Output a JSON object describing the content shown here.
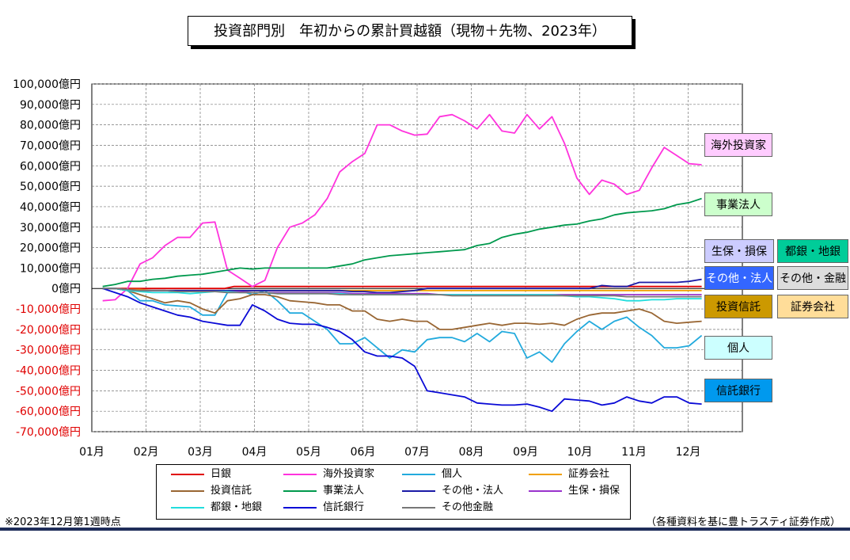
{
  "title": "投資部門別　年初からの累計買越額（現物＋先物、2023年）",
  "footer_note": "※2023年12月第1週時点",
  "source_note": "（各種資料を基に豊トラスティ証券作成）",
  "chart_data": {
    "type": "line",
    "title": "投資部門別　年初からの累計買越額（現物＋先物、2023年）",
    "xlabel": "",
    "ylabel": "",
    "ylim": [
      -70000,
      100000
    ],
    "y_ticks": [
      "100,000億円",
      "90,000億円",
      "80,000億円",
      "70,000億円",
      "60,000億円",
      "50,000億円",
      "40,000億円",
      "30,000億円",
      "20,000億円",
      "10,000億円",
      "0億円",
      "-10,000億円",
      "-20,000億円",
      "-30,000億円",
      "-40,000億円",
      "-50,000億円",
      "-60,000億円",
      "-70,000億円"
    ],
    "y_tick_values": [
      100000,
      90000,
      80000,
      70000,
      60000,
      50000,
      40000,
      30000,
      20000,
      10000,
      0,
      -10000,
      -20000,
      -30000,
      -40000,
      -50000,
      -60000,
      -70000
    ],
    "x_ticks": [
      "01月",
      "02月",
      "03月",
      "04月",
      "05月",
      "06月",
      "07月",
      "08月",
      "09月",
      "10月",
      "11月",
      "12月"
    ],
    "grid": true,
    "legend_position": "bottom",
    "series": [
      {
        "name": "日銀",
        "color": "#e00000",
        "values": [
          0,
          0,
          0,
          0,
          0,
          0,
          0,
          0,
          0,
          0,
          0,
          0,
          0,
          0,
          1000,
          1000,
          1000,
          1000,
          1000,
          1000,
          1000,
          1000,
          1000,
          1000,
          1000,
          1000,
          1000,
          1000,
          1000,
          1000,
          1000,
          1000,
          1000,
          1000,
          1000,
          1000,
          1000,
          1000,
          1000,
          1000,
          1000,
          1000,
          1000,
          1000,
          1000,
          1000,
          1000,
          1000,
          1000,
          1000,
          1000,
          1000,
          1000,
          1000,
          1000,
          1000,
          1000,
          1000,
          1000,
          1000,
          1000,
          1000,
          1000,
          1000,
          1000
        ]
      },
      {
        "name": "海外投資家",
        "color": "#ff33dd",
        "values": [
          -6000,
          -5500,
          0,
          12000,
          15000,
          21000,
          25000,
          25000,
          32000,
          32500,
          9000,
          5000,
          1000,
          4000,
          20000,
          30000,
          32000,
          36000,
          44000,
          57000,
          62000,
          66000,
          80000,
          80000,
          77000,
          75000,
          75500,
          84000,
          85000,
          82000,
          78000,
          85000,
          77000,
          76000,
          85000,
          78000,
          84000,
          71000,
          54000,
          46000,
          53000,
          51000,
          46000,
          48000,
          59000,
          69000,
          65000,
          61000,
          60500
        ]
      },
      {
        "name": "個人",
        "color": "#22aadd",
        "values": [
          0,
          0,
          -1000,
          -6000,
          -6000,
          -8000,
          -8500,
          -9000,
          -13000,
          -13000,
          -2000,
          -1000,
          -3000,
          -1000,
          -6000,
          -12000,
          -12000,
          -16000,
          -20000,
          -27000,
          -27000,
          -24000,
          -29000,
          -34000,
          -30000,
          -31000,
          -25000,
          -24000,
          -24000,
          -26000,
          -22000,
          -26000,
          -21000,
          -22000,
          -34000,
          -31000,
          -36000,
          -27000,
          -21000,
          -16000,
          -20000,
          -16000,
          -14000,
          -19000,
          -23000,
          -29000,
          -29000,
          -28000,
          -23000
        ]
      },
      {
        "name": "証券会社",
        "color": "#f0a000",
        "values": [
          0,
          0,
          -500,
          -500,
          -1000,
          -1000,
          -1000,
          -1000,
          -1000,
          -1000,
          -1000,
          -1000,
          -1000,
          -1000,
          -1000,
          -1000,
          -1000,
          -1000,
          -1000,
          -1000,
          -1000,
          -1000,
          -1000,
          -1000,
          -1000,
          -1000,
          -1000,
          -1000,
          -1000,
          -1000,
          -1000,
          -1000,
          -1000,
          -1000,
          -1000,
          -1000,
          -1000,
          -1000,
          -1000,
          -1000,
          -1000,
          -1000,
          -1000,
          -1000,
          -1000,
          -1000,
          -1000,
          -1000,
          -1000
        ]
      },
      {
        "name": "投資信託",
        "color": "#996633",
        "values": [
          0,
          0,
          -1000,
          -3000,
          -5000,
          -7000,
          -6000,
          -7000,
          -10000,
          -12000,
          -6000,
          -5000,
          -3000,
          -3000,
          -4000,
          -6000,
          -6500,
          -7000,
          -8000,
          -8000,
          -11000,
          -11000,
          -15000,
          -16000,
          -15000,
          -16000,
          -16000,
          -20000,
          -20000,
          -19000,
          -18000,
          -17000,
          -18000,
          -17000,
          -17000,
          -17500,
          -17000,
          -18000,
          -15000,
          -13000,
          -12000,
          -12000,
          -11000,
          -10000,
          -12000,
          -16000,
          -17000,
          -16500,
          -16000
        ]
      },
      {
        "name": "事業法人",
        "color": "#00994d",
        "values": [
          1000,
          2000,
          3500,
          3500,
          4500,
          5000,
          6000,
          6500,
          7000,
          8000,
          9000,
          10000,
          9500,
          10000,
          10000,
          10000,
          10000,
          10000,
          10000,
          11000,
          12000,
          14000,
          15000,
          16000,
          16500,
          17000,
          17500,
          18000,
          18500,
          19000,
          21000,
          22000,
          25000,
          26500,
          27500,
          29000,
          30000,
          31000,
          31500,
          33000,
          34000,
          36000,
          37000,
          37500,
          38000,
          39000,
          41000,
          42000,
          44000
        ]
      },
      {
        "name": "その他・法人",
        "color": "#1a1aa6",
        "values": [
          0,
          0,
          -1000,
          -1000,
          -1000,
          -1000,
          -1000,
          -1000,
          -1000,
          -1000,
          -1000,
          -1000,
          -1000,
          -1000,
          -1000,
          -1000,
          -1000,
          -1000,
          -1000,
          -1000,
          -1500,
          -1500,
          -2000,
          -2000,
          -1500,
          -1000,
          0,
          0,
          0,
          0,
          0,
          0,
          0,
          0,
          0,
          0,
          0,
          0,
          0,
          0,
          1500,
          1000,
          1000,
          3000,
          3000,
          3000,
          3000,
          3500,
          4500
        ]
      },
      {
        "name": "生保・損保",
        "color": "#9933cc",
        "values": [
          0,
          0,
          -500,
          -1000,
          -1000,
          -1000,
          -1500,
          -1500,
          -1500,
          -1500,
          -1500,
          -1500,
          -2000,
          -2000,
          -2000,
          -2000,
          -2000,
          -2000,
          -2000,
          -2000,
          -2500,
          -2500,
          -2500,
          -2500,
          -2500,
          -2500,
          -2500,
          -3000,
          -3000,
          -3000,
          -3000,
          -3000,
          -3000,
          -3000,
          -3000,
          -3000,
          -3000,
          -3000,
          -3000,
          -3000,
          -3000,
          -3000,
          -3000,
          -3000,
          -3000,
          -3000,
          -3000,
          -3000,
          -3000
        ]
      },
      {
        "name": "都銀・地銀",
        "color": "#22dddd",
        "values": [
          0,
          0,
          -1000,
          -1500,
          -2000,
          -2000,
          -2000,
          -2500,
          -2000,
          -1500,
          -1500,
          -2000,
          -2000,
          -2000,
          -2500,
          -2500,
          -2500,
          -2500,
          -2500,
          -2500,
          -3000,
          -3000,
          -3000,
          -3000,
          -3000,
          -3000,
          -3000,
          -3000,
          -3000,
          -3000,
          -3000,
          -3000,
          -3000,
          -3000,
          -3000,
          -3000,
          -3000,
          -3500,
          -4000,
          -4000,
          -4500,
          -5000,
          -6000,
          -6000,
          -5500,
          -5500,
          -5000,
          -5000,
          -5000
        ]
      },
      {
        "name": "信託銀行",
        "color": "#0a0ad6",
        "values": [
          0,
          -2000,
          -4000,
          -7000,
          -9000,
          -11000,
          -13000,
          -14000,
          -16000,
          -17000,
          -18000,
          -18000,
          -8000,
          -11000,
          -15000,
          -17000,
          -17500,
          -17500,
          -19000,
          -21000,
          -25000,
          -31000,
          -33000,
          -33000,
          -34000,
          -38000,
          -50000,
          -51000,
          -52000,
          -53000,
          -56000,
          -56500,
          -57000,
          -57000,
          -56500,
          -58000,
          -60000,
          -54000,
          -54500,
          -55000,
          -57000,
          -56000,
          -53000,
          -55000,
          -56000,
          -53000,
          -53000,
          -56000,
          -56500
        ]
      },
      {
        "name": "その他金融",
        "color": "#777777",
        "values": [
          0,
          0,
          -500,
          -1000,
          -1000,
          -1000,
          -1500,
          -1500,
          -1500,
          -1500,
          -2000,
          -2000,
          -2000,
          -2000,
          -2500,
          -2500,
          -2500,
          -2500,
          -2500,
          -3000,
          -3000,
          -3000,
          -3000,
          -3000,
          -3000,
          -3000,
          -3000,
          -3000,
          -3500,
          -3500,
          -3500,
          -3500,
          -3500,
          -3500,
          -3500,
          -3500,
          -3500,
          -3500,
          -3500,
          -3500,
          -3500,
          -3500,
          -4000,
          -4000,
          -4000,
          -4000,
          -4000,
          -4000,
          -4000
        ]
      }
    ]
  },
  "tags": [
    {
      "text": "海外投資家",
      "bg": "#ffccff"
    },
    {
      "text": "事業法人",
      "bg": "#ccffcc"
    },
    {
      "text": "生保・損保",
      "bg": "#ccccff"
    },
    {
      "text": "都銀・地銀",
      "bg": "#00cc99"
    },
    {
      "text": "その他・法人",
      "bg": "#3366ff"
    },
    {
      "text": "その他・金融",
      "bg": "#dddddd"
    },
    {
      "text": "投資信託",
      "bg": "#cc9900"
    },
    {
      "text": "証券会社",
      "bg": "#ffdd99"
    },
    {
      "text": "個人",
      "bg": "#ccffff"
    },
    {
      "text": "信託銀行",
      "bg": "#0099ee"
    }
  ],
  "legend": [
    {
      "label": "日銀",
      "color": "#e00000"
    },
    {
      "label": "海外投資家",
      "color": "#ff33dd"
    },
    {
      "label": "個人",
      "color": "#22aadd"
    },
    {
      "label": "証券会社",
      "color": "#f0a000"
    },
    {
      "label": "投資信託",
      "color": "#996633"
    },
    {
      "label": "事業法人",
      "color": "#00994d"
    },
    {
      "label": "その他・法人",
      "color": "#1a1aa6"
    },
    {
      "label": "生保・損保",
      "color": "#9933cc"
    },
    {
      "label": "都銀・地銀",
      "color": "#22dddd"
    },
    {
      "label": "信託銀行",
      "color": "#0a0ad6"
    },
    {
      "label": "その他金融",
      "color": "#777777"
    }
  ]
}
